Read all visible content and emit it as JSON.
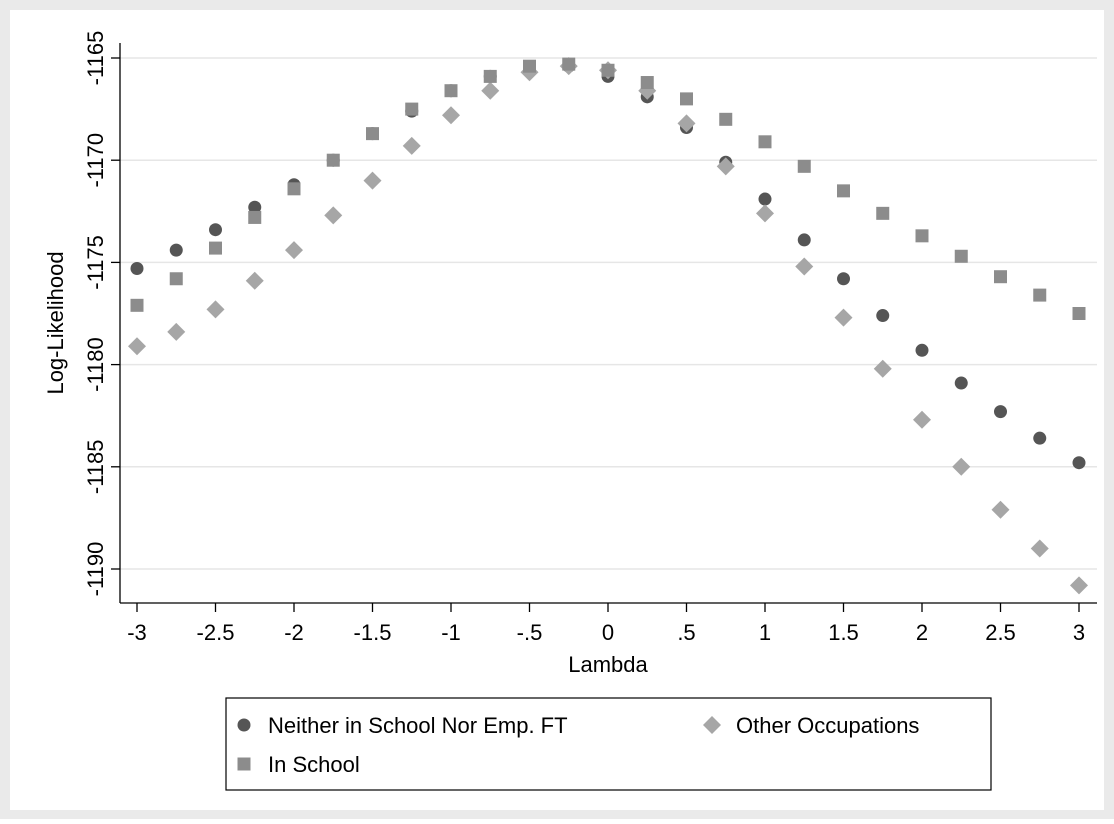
{
  "chart_data": {
    "type": "scatter",
    "title": "",
    "xlabel": "Lambda",
    "ylabel": "Log-Likelihood",
    "xlim": [
      -3.1,
      3.1
    ],
    "ylim": [
      -1191.5,
      -1164.8
    ],
    "x_ticks": [
      -3,
      -2.5,
      -2,
      -1.5,
      -1,
      -0.5,
      0,
      0.5,
      1,
      1.5,
      2,
      2.5,
      3
    ],
    "x_tick_labels": [
      "-3",
      "-2.5",
      "-2",
      "-1.5",
      "-1",
      "-.5",
      "0",
      ".5",
      "1",
      "1.5",
      "2",
      "2.5",
      "3"
    ],
    "y_ticks": [
      -1165,
      -1170,
      -1175,
      -1180,
      -1185,
      -1190
    ],
    "y_tick_labels": [
      "-1165",
      "-1170",
      "-1175",
      "-1180",
      "-1185",
      "-1190"
    ],
    "grid": "horizontal",
    "legend_placement": "bottom",
    "x": [
      -3,
      -2.75,
      -2.5,
      -2.25,
      -2,
      -1.75,
      -1.5,
      -1.25,
      -1,
      -0.75,
      -0.5,
      -0.25,
      0,
      0.25,
      0.5,
      0.75,
      1,
      1.25,
      1.5,
      1.75,
      2,
      2.25,
      2.5,
      2.75,
      3
    ],
    "series": [
      {
        "name": "Neither in School Nor Emp. FT",
        "marker": "circle",
        "color": "#555555",
        "values": [
          -1175.3,
          -1174.4,
          -1173.4,
          -1172.3,
          -1171.2,
          -1170.0,
          -1168.7,
          -1167.6,
          -1166.6,
          -1165.9,
          -1165.5,
          -1165.4,
          -1165.9,
          -1166.9,
          -1168.4,
          -1170.1,
          -1171.9,
          -1173.9,
          -1175.8,
          -1177.6,
          -1179.3,
          -1180.9,
          -1182.3,
          -1183.6,
          -1184.8
        ]
      },
      {
        "name": "In School",
        "marker": "square",
        "color": "#8c8c8c",
        "values": [
          -1177.1,
          -1175.8,
          -1174.3,
          -1172.8,
          -1171.4,
          -1170.0,
          -1168.7,
          -1167.5,
          -1166.6,
          -1165.9,
          -1165.4,
          -1165.3,
          -1165.6,
          -1166.2,
          -1167.0,
          -1168.0,
          -1169.1,
          -1170.3,
          -1171.5,
          -1172.6,
          -1173.7,
          -1174.7,
          -1175.7,
          -1176.6,
          -1177.5
        ]
      },
      {
        "name": "Other Occupations",
        "marker": "diamond",
        "color": "#a6a6a6",
        "values": [
          -1179.1,
          -1178.4,
          -1177.3,
          -1175.9,
          -1174.4,
          -1172.7,
          -1171.0,
          -1169.3,
          -1167.8,
          -1166.6,
          -1165.7,
          -1165.4,
          -1165.6,
          -1166.6,
          -1168.2,
          -1170.3,
          -1172.6,
          -1175.2,
          -1177.7,
          -1180.2,
          -1182.7,
          -1185.0,
          -1187.1,
          -1189.0,
          -1190.8
        ]
      }
    ],
    "legend": [
      {
        "name": "Neither in School Nor Emp. FT",
        "marker": "circle"
      },
      {
        "name": "Other Occupations",
        "marker": "diamond"
      },
      {
        "name": "In School",
        "marker": "square"
      }
    ]
  }
}
